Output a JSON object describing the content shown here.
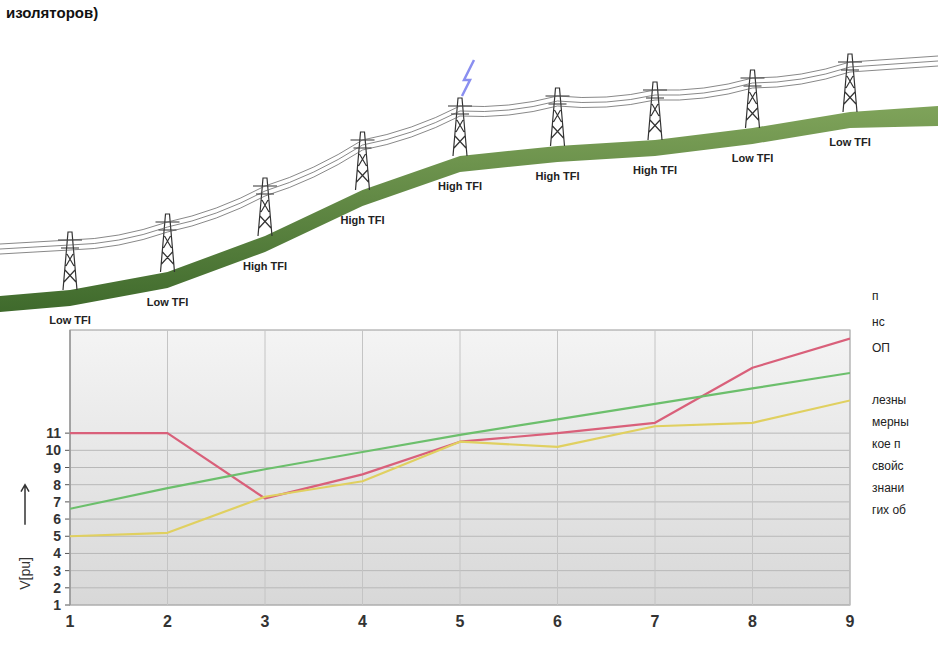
{
  "chart_data": {
    "type": "line",
    "y_label": "V[pu]",
    "categories": [
      "1",
      "2",
      "3",
      "4",
      "5",
      "6",
      "7",
      "8",
      "9"
    ],
    "series": [
      {
        "color": "#d9607a",
        "values": [
          11,
          11,
          7.2,
          8.6,
          10.5,
          11,
          11.6,
          14.8,
          16.5
        ]
      },
      {
        "color": "#6cbf6c",
        "values": [
          6.6,
          7.8,
          8.9,
          9.9,
          10.9,
          11.8,
          12.7,
          13.6,
          14.5
        ]
      },
      {
        "color": "#e0d060",
        "values": [
          5,
          5.2,
          7.3,
          8.2,
          10.5,
          10.2,
          11.4,
          11.6,
          12.9
        ]
      }
    ],
    "ylim": [
      1,
      17
    ],
    "yticks": [
      1,
      2,
      3,
      4,
      5,
      6,
      7,
      8,
      9,
      10,
      11
    ],
    "grid": true,
    "annotations": {
      "heading": "изоляторов)",
      "tower_labels": [
        "Low TFI",
        "Low TFI",
        "High TFI",
        "High TFI",
        "High TFI",
        "High TFI",
        "High TFI",
        "Low TFI",
        "Low TFI"
      ],
      "side_text": [
        "п",
        "нс",
        "ОП",
        "лезны",
        "мерны",
        "кое п",
        "свойс",
        "знани",
        "гих об"
      ]
    }
  }
}
